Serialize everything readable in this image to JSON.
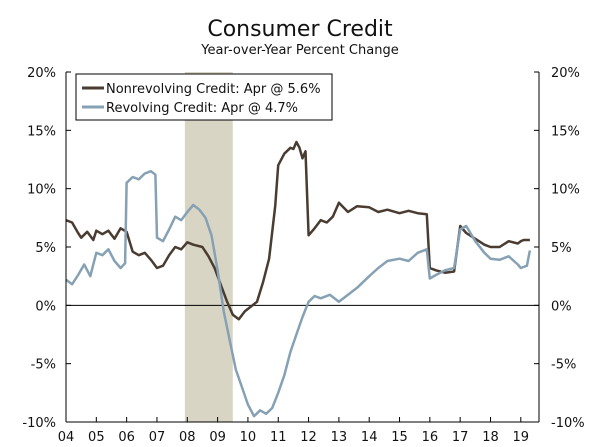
{
  "chart_data": {
    "type": "line",
    "title": "Consumer Credit",
    "subtitle": "Year-over-Year Percent Change",
    "xlabel": "",
    "ylabel": "",
    "xlim": [
      2004.0,
      2019.6
    ],
    "ylim": [
      -10,
      20
    ],
    "y_ticks": [
      20,
      15,
      10,
      5,
      0,
      -5,
      -10
    ],
    "y_tick_labels": [
      "20%",
      "15%",
      "10%",
      "5%",
      "0%",
      "-5%",
      "-10%"
    ],
    "x_ticks": [
      2004,
      2005,
      2006,
      2007,
      2008,
      2009,
      2010,
      2011,
      2012,
      2013,
      2014,
      2015,
      2016,
      2017,
      2018,
      2019
    ],
    "x_tick_labels": [
      "04",
      "05",
      "06",
      "07",
      "08",
      "09",
      "10",
      "11",
      "12",
      "13",
      "14",
      "15",
      "16",
      "17",
      "18",
      "19"
    ],
    "recession": {
      "start": 2007.92,
      "end": 2009.5
    },
    "zero_line": true,
    "grid": false,
    "legend_position": "top-left",
    "colors": {
      "nonrevolving": "#4a3c30",
      "revolving": "#86a1b4",
      "recession": "#d9d5c5",
      "axis": "#000000"
    },
    "series": [
      {
        "name": "Nonrevolving Credit: Apr @ 5.6%",
        "key": "nonrevolving",
        "x": [
          2004.0,
          2004.2,
          2004.4,
          2004.5,
          2004.7,
          2004.9,
          2005.0,
          2005.2,
          2005.4,
          2005.6,
          2005.8,
          2006.0,
          2006.2,
          2006.4,
          2006.6,
          2006.8,
          2007.0,
          2007.2,
          2007.4,
          2007.6,
          2007.8,
          2008.0,
          2008.2,
          2008.5,
          2008.7,
          2008.9,
          2009.1,
          2009.3,
          2009.5,
          2009.7,
          2009.9,
          2010.1,
          2010.3,
          2010.5,
          2010.7,
          2010.9,
          2011.0,
          2011.2,
          2011.4,
          2011.5,
          2011.6,
          2011.7,
          2011.8,
          2011.9,
          2012.0,
          2012.2,
          2012.4,
          2012.6,
          2012.8,
          2013.0,
          2013.3,
          2013.6,
          2014.0,
          2014.3,
          2014.6,
          2015.0,
          2015.3,
          2015.6,
          2015.9,
          2016.0,
          2016.2,
          2016.5,
          2016.8,
          2017.0,
          2017.2,
          2017.5,
          2017.8,
          2018.0,
          2018.3,
          2018.6,
          2018.9,
          2019.0,
          2019.1,
          2019.3
        ],
        "values": [
          7.3,
          7.1,
          6.2,
          5.8,
          6.3,
          5.6,
          6.4,
          6.1,
          6.4,
          5.7,
          6.6,
          6.3,
          4.6,
          4.3,
          4.5,
          3.9,
          3.2,
          3.4,
          4.3,
          5.0,
          4.8,
          5.4,
          5.2,
          5.0,
          4.2,
          3.2,
          1.8,
          0.4,
          -0.8,
          -1.2,
          -0.5,
          -0.1,
          0.3,
          2.0,
          4.0,
          8.5,
          12.0,
          13.0,
          13.5,
          13.4,
          14.0,
          13.5,
          12.6,
          13.2,
          6.0,
          6.6,
          7.3,
          7.1,
          7.6,
          8.8,
          8.0,
          8.5,
          8.4,
          8.0,
          8.2,
          7.9,
          8.1,
          7.9,
          7.8,
          3.2,
          3.0,
          2.8,
          2.9,
          6.8,
          6.2,
          5.7,
          5.2,
          5.0,
          5.0,
          5.5,
          5.3,
          5.5,
          5.6,
          5.6
        ]
      },
      {
        "name": "Revolving Credit: Apr @ 4.7%",
        "key": "revolving",
        "x": [
          2004.0,
          2004.2,
          2004.4,
          2004.6,
          2004.8,
          2005.0,
          2005.2,
          2005.4,
          2005.6,
          2005.8,
          2005.95,
          2006.0,
          2006.2,
          2006.4,
          2006.6,
          2006.8,
          2006.95,
          2007.0,
          2007.2,
          2007.4,
          2007.6,
          2007.8,
          2008.0,
          2008.2,
          2008.4,
          2008.6,
          2008.8,
          2009.0,
          2009.2,
          2009.4,
          2009.6,
          2009.8,
          2010.0,
          2010.2,
          2010.4,
          2010.6,
          2010.8,
          2011.0,
          2011.2,
          2011.4,
          2011.6,
          2011.8,
          2012.0,
          2012.2,
          2012.4,
          2012.7,
          2013.0,
          2013.3,
          2013.6,
          2014.0,
          2014.3,
          2014.6,
          2015.0,
          2015.3,
          2015.6,
          2015.9,
          2016.0,
          2016.2,
          2016.5,
          2016.8,
          2017.0,
          2017.2,
          2017.5,
          2017.8,
          2018.0,
          2018.3,
          2018.6,
          2018.9,
          2019.0,
          2019.2,
          2019.3
        ],
        "values": [
          2.2,
          1.8,
          2.6,
          3.5,
          2.5,
          4.5,
          4.3,
          4.8,
          3.8,
          3.2,
          3.6,
          10.5,
          11.0,
          10.8,
          11.3,
          11.5,
          11.2,
          5.8,
          5.5,
          6.5,
          7.6,
          7.3,
          8.0,
          8.6,
          8.2,
          7.5,
          6.0,
          3.0,
          -0.5,
          -3.0,
          -5.5,
          -7.0,
          -8.5,
          -9.5,
          -9.0,
          -9.3,
          -8.8,
          -7.5,
          -6.0,
          -4.0,
          -2.5,
          -1.0,
          0.3,
          0.8,
          0.6,
          0.9,
          0.3,
          0.9,
          1.5,
          2.5,
          3.2,
          3.8,
          4.0,
          3.8,
          4.5,
          4.8,
          2.3,
          2.6,
          3.0,
          3.2,
          6.5,
          6.8,
          5.5,
          4.5,
          4.0,
          3.9,
          4.2,
          3.5,
          3.2,
          3.4,
          4.7
        ]
      }
    ]
  }
}
